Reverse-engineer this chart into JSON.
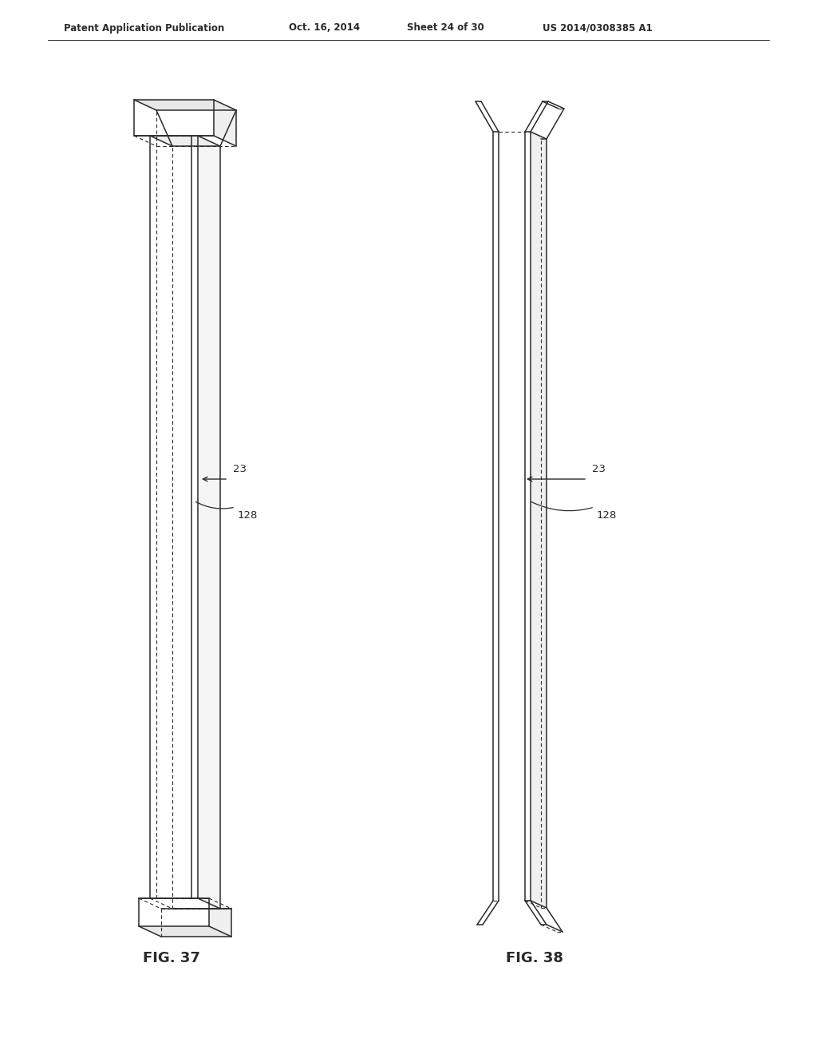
{
  "background_color": "#ffffff",
  "header_text": "Patent Application Publication",
  "header_date": "Oct. 16, 2014",
  "header_sheet": "Sheet 24 of 30",
  "header_patent": "US 2014/0308385 A1",
  "fig37_label": "FIG. 37",
  "fig38_label": "FIG. 38",
  "label_23": "23",
  "label_128": "128",
  "line_color": "#2a2a2a",
  "bg": "#ffffff",
  "solid_lw": 1.1,
  "dashed_lw": 0.8,
  "dash_pattern": [
    4,
    3
  ]
}
